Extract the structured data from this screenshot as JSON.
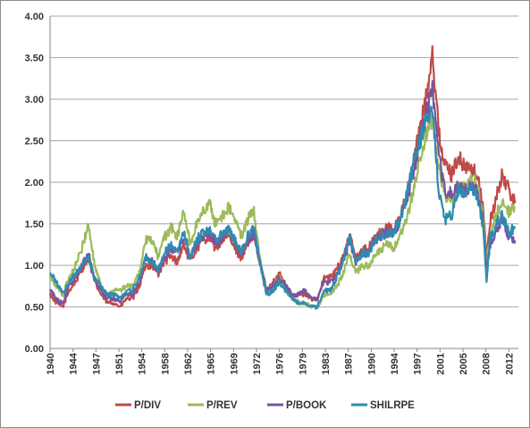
{
  "chart_data": {
    "type": "line",
    "title": "",
    "xlabel": "",
    "ylabel": "",
    "xlim": [
      1940,
      2013.5
    ],
    "ylim": [
      0,
      4
    ],
    "grid": "horizontal",
    "legend_position": "bottom",
    "y_ticks": [
      "0.00",
      "0.50",
      "1.00",
      "1.50",
      "2.00",
      "2.50",
      "3.00",
      "3.50",
      "4.00"
    ],
    "x_tick_labels": [
      "1940",
      "1944",
      "1947",
      "1951",
      "1954",
      "1958",
      "1962",
      "1965",
      "1969",
      "1972",
      "1976",
      "1979",
      "1983",
      "1987",
      "1990",
      "1994",
      "1997",
      "2001",
      "2005",
      "2008",
      "2012"
    ],
    "series": [
      {
        "name": "P/DIV",
        "color": "#be4b48",
        "x": [
          1940,
          1941,
          1942,
          1943,
          1944,
          1945,
          1946,
          1947,
          1948,
          1949,
          1950,
          1951,
          1952,
          1953,
          1954,
          1955,
          1956,
          1957,
          1958,
          1959,
          1960,
          1961,
          1962,
          1963,
          1964,
          1965,
          1966,
          1967,
          1968,
          1969,
          1970,
          1971,
          1972,
          1973,
          1974,
          1975,
          1976,
          1977,
          1978,
          1979,
          1980,
          1981,
          1982,
          1983,
          1984,
          1985,
          1986,
          1987,
          1988,
          1989,
          1990,
          1991,
          1992,
          1993,
          1994,
          1995,
          1996,
          1997,
          1998,
          1999,
          2000,
          2000.5,
          2001,
          2002,
          2003,
          2004,
          2005,
          2006,
          2007,
          2008,
          2008.5,
          2009,
          2010,
          2011,
          2012,
          2013
        ],
        "values": [
          0.65,
          0.55,
          0.5,
          0.7,
          0.8,
          0.95,
          1.1,
          0.8,
          0.65,
          0.55,
          0.55,
          0.5,
          0.6,
          0.6,
          0.75,
          1.0,
          1.0,
          0.9,
          1.05,
          1.1,
          1.05,
          1.25,
          1.05,
          1.2,
          1.3,
          1.35,
          1.2,
          1.3,
          1.35,
          1.2,
          1.1,
          1.25,
          1.35,
          1.0,
          0.7,
          0.8,
          0.9,
          0.75,
          0.65,
          0.65,
          0.65,
          0.6,
          0.6,
          0.85,
          0.85,
          0.95,
          1.1,
          1.35,
          1.1,
          1.2,
          1.2,
          1.35,
          1.4,
          1.45,
          1.45,
          1.6,
          1.85,
          2.25,
          2.6,
          3.0,
          3.6,
          3.1,
          2.6,
          2.2,
          2.1,
          2.3,
          2.2,
          2.15,
          2.1,
          1.7,
          1.1,
          1.5,
          1.8,
          2.1,
          1.9,
          1.75
        ]
      },
      {
        "name": "P/REV",
        "color": "#9bbb59",
        "x": [
          1940,
          1941,
          1942,
          1943,
          1944,
          1945,
          1946,
          1947,
          1948,
          1949,
          1950,
          1951,
          1952,
          1953,
          1954,
          1955,
          1956,
          1957,
          1958,
          1959,
          1960,
          1961,
          1962,
          1963,
          1964,
          1965,
          1966,
          1967,
          1968,
          1969,
          1970,
          1971,
          1972,
          1973,
          1974,
          1975,
          1976,
          1977,
          1978,
          1979,
          1980,
          1981,
          1982,
          1983,
          1984,
          1985,
          1986,
          1987,
          1988,
          1989,
          1990,
          1991,
          1992,
          1993,
          1994,
          1995,
          1996,
          1997,
          1998,
          1999,
          2000,
          2000.5,
          2001,
          2002,
          2003,
          2004,
          2005,
          2006,
          2007,
          2008,
          2008.5,
          2009,
          2010,
          2011,
          2012,
          2013
        ],
        "values": [
          0.85,
          0.75,
          0.65,
          0.85,
          1.0,
          1.2,
          1.5,
          1.0,
          0.75,
          0.65,
          0.7,
          0.7,
          0.75,
          0.75,
          0.9,
          1.3,
          1.3,
          1.1,
          1.35,
          1.45,
          1.35,
          1.65,
          1.25,
          1.5,
          1.65,
          1.75,
          1.5,
          1.6,
          1.7,
          1.55,
          1.35,
          1.55,
          1.65,
          1.05,
          0.65,
          0.75,
          0.85,
          0.7,
          0.6,
          0.55,
          0.55,
          0.5,
          0.5,
          0.65,
          0.65,
          0.75,
          0.9,
          1.15,
          0.9,
          1.0,
          1.0,
          1.1,
          1.2,
          1.25,
          1.2,
          1.35,
          1.55,
          1.9,
          2.25,
          2.55,
          2.75,
          2.5,
          2.2,
          1.85,
          1.75,
          1.95,
          1.95,
          2.0,
          2.0,
          1.6,
          1.0,
          1.35,
          1.6,
          1.8,
          1.65,
          1.7
        ]
      },
      {
        "name": "P/BOOK",
        "color": "#7953a0",
        "x": [
          1940,
          1941,
          1942,
          1943,
          1944,
          1945,
          1946,
          1947,
          1948,
          1949,
          1950,
          1951,
          1952,
          1953,
          1954,
          1955,
          1956,
          1957,
          1958,
          1959,
          1960,
          1961,
          1962,
          1963,
          1964,
          1965,
          1966,
          1967,
          1968,
          1969,
          1970,
          1971,
          1972,
          1973,
          1974,
          1975,
          1976,
          1977,
          1978,
          1979,
          1980,
          1981,
          1982,
          1983,
          1984,
          1985,
          1986,
          1987,
          1988,
          1989,
          1990,
          1991,
          1992,
          1993,
          1994,
          1995,
          1996,
          1997,
          1998,
          1999,
          2000,
          2000.5,
          2001,
          2002,
          2003,
          2004,
          2005,
          2006,
          2007,
          2008,
          2008.5,
          2009,
          2010,
          2011,
          2012,
          2013
        ],
        "values": [
          0.7,
          0.6,
          0.55,
          0.75,
          0.85,
          1.0,
          1.15,
          0.85,
          0.7,
          0.6,
          0.6,
          0.55,
          0.65,
          0.65,
          0.8,
          1.1,
          1.05,
          0.95,
          1.1,
          1.2,
          1.15,
          1.35,
          1.1,
          1.25,
          1.35,
          1.4,
          1.25,
          1.35,
          1.45,
          1.3,
          1.15,
          1.3,
          1.4,
          1.0,
          0.7,
          0.75,
          0.85,
          0.75,
          0.65,
          0.65,
          0.7,
          0.6,
          0.6,
          0.8,
          0.8,
          0.9,
          1.05,
          1.3,
          1.05,
          1.15,
          1.15,
          1.3,
          1.35,
          1.4,
          1.4,
          1.55,
          1.8,
          2.1,
          2.5,
          2.8,
          3.1,
          2.7,
          2.3,
          1.9,
          1.85,
          1.95,
          1.9,
          1.95,
          1.9,
          1.5,
          0.95,
          1.2,
          1.4,
          1.55,
          1.35,
          1.3
        ]
      },
      {
        "name": "SHILRPE",
        "color": "#2e8bb0",
        "x": [
          1940,
          1941,
          1942,
          1943,
          1944,
          1945,
          1946,
          1947,
          1948,
          1949,
          1950,
          1951,
          1952,
          1953,
          1954,
          1955,
          1956,
          1957,
          1958,
          1959,
          1960,
          1961,
          1962,
          1963,
          1964,
          1965,
          1966,
          1967,
          1968,
          1969,
          1970,
          1971,
          1972,
          1973,
          1974,
          1975,
          1976,
          1977,
          1978,
          1979,
          1980,
          1981,
          1982,
          1983,
          1984,
          1985,
          1986,
          1987,
          1988,
          1989,
          1990,
          1991,
          1992,
          1993,
          1994,
          1995,
          1996,
          1997,
          1998,
          1999,
          2000,
          2000.5,
          2001,
          2002,
          2003,
          2004,
          2005,
          2006,
          2007,
          2008,
          2008.5,
          2009,
          2010,
          2011,
          2012,
          2013
        ],
        "values": [
          0.9,
          0.8,
          0.65,
          0.8,
          0.9,
          1.0,
          1.1,
          0.85,
          0.75,
          0.65,
          0.65,
          0.6,
          0.7,
          0.7,
          0.85,
          1.1,
          1.05,
          0.95,
          1.15,
          1.25,
          1.15,
          1.4,
          1.1,
          1.3,
          1.4,
          1.45,
          1.3,
          1.4,
          1.45,
          1.3,
          1.15,
          1.35,
          1.45,
          1.0,
          0.65,
          0.7,
          0.8,
          0.7,
          0.6,
          0.55,
          0.55,
          0.5,
          0.5,
          0.7,
          0.7,
          0.85,
          1.05,
          1.35,
          1.05,
          1.15,
          1.15,
          1.3,
          1.35,
          1.4,
          1.4,
          1.55,
          1.85,
          2.2,
          2.5,
          2.75,
          2.9,
          2.4,
          1.9,
          1.55,
          1.6,
          1.9,
          1.85,
          1.9,
          1.85,
          1.45,
          0.8,
          1.3,
          1.5,
          1.6,
          1.4,
          1.45
        ]
      }
    ]
  }
}
